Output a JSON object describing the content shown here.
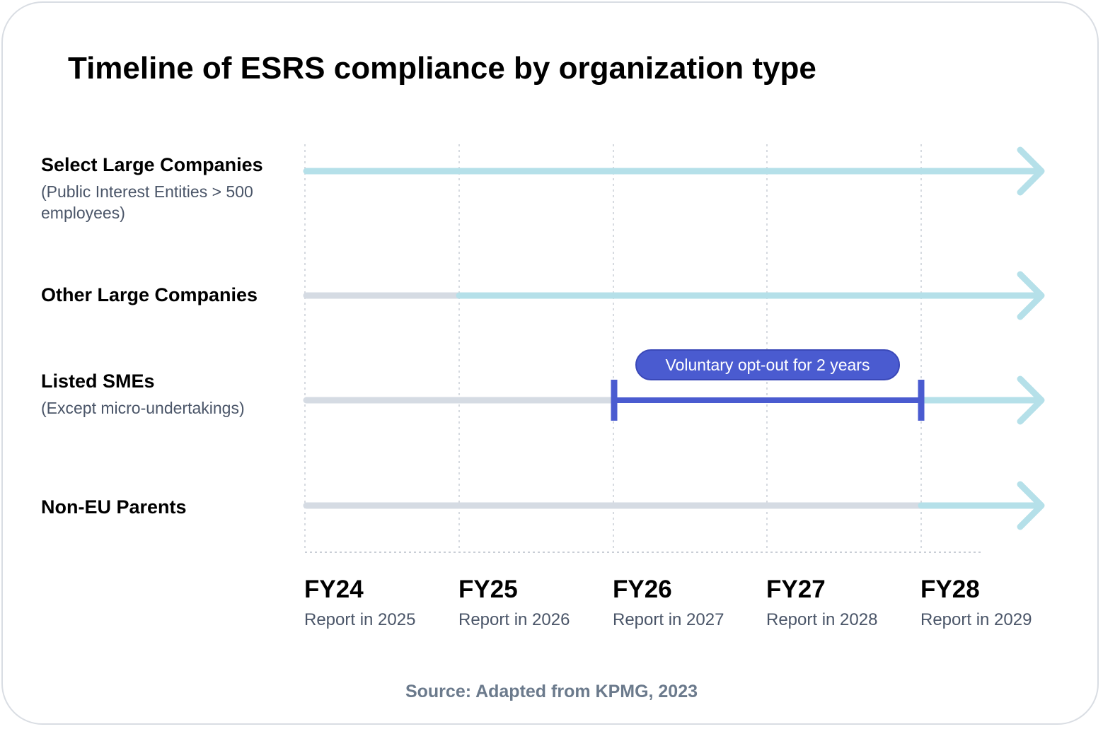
{
  "title": "Timeline of ESRS compliance by organization type",
  "rows": [
    {
      "name": "Select Large Companies",
      "sub": "(Public Interest Entities > 500 employees)",
      "reporting_from": "FY24"
    },
    {
      "name": "Other Large Companies",
      "sub": "",
      "reporting_from": "FY25"
    },
    {
      "name": "Listed SMEs",
      "sub": "(Except micro-undertakings)",
      "reporting_from": "FY26",
      "opt_out_until": "FY28"
    },
    {
      "name": "Non-EU Parents",
      "sub": "",
      "reporting_from": "FY28"
    }
  ],
  "ticks": [
    {
      "fy": "FY24",
      "report": "Report in 2025"
    },
    {
      "fy": "FY25",
      "report": "Report in 2026"
    },
    {
      "fy": "FY26",
      "report": "Report in 2027"
    },
    {
      "fy": "FY27",
      "report": "Report in 2028"
    },
    {
      "fy": "FY28",
      "report": "Report in 2029"
    }
  ],
  "optout_label": "Voluntary opt-out for 2 years",
  "source": "Source: Adapted from KPMG, 2023",
  "colors": {
    "active": "#b5e0e9",
    "inactive": "#d5dbe3",
    "optout": "#4a5bd0",
    "gridline": "#c9ced6"
  }
}
